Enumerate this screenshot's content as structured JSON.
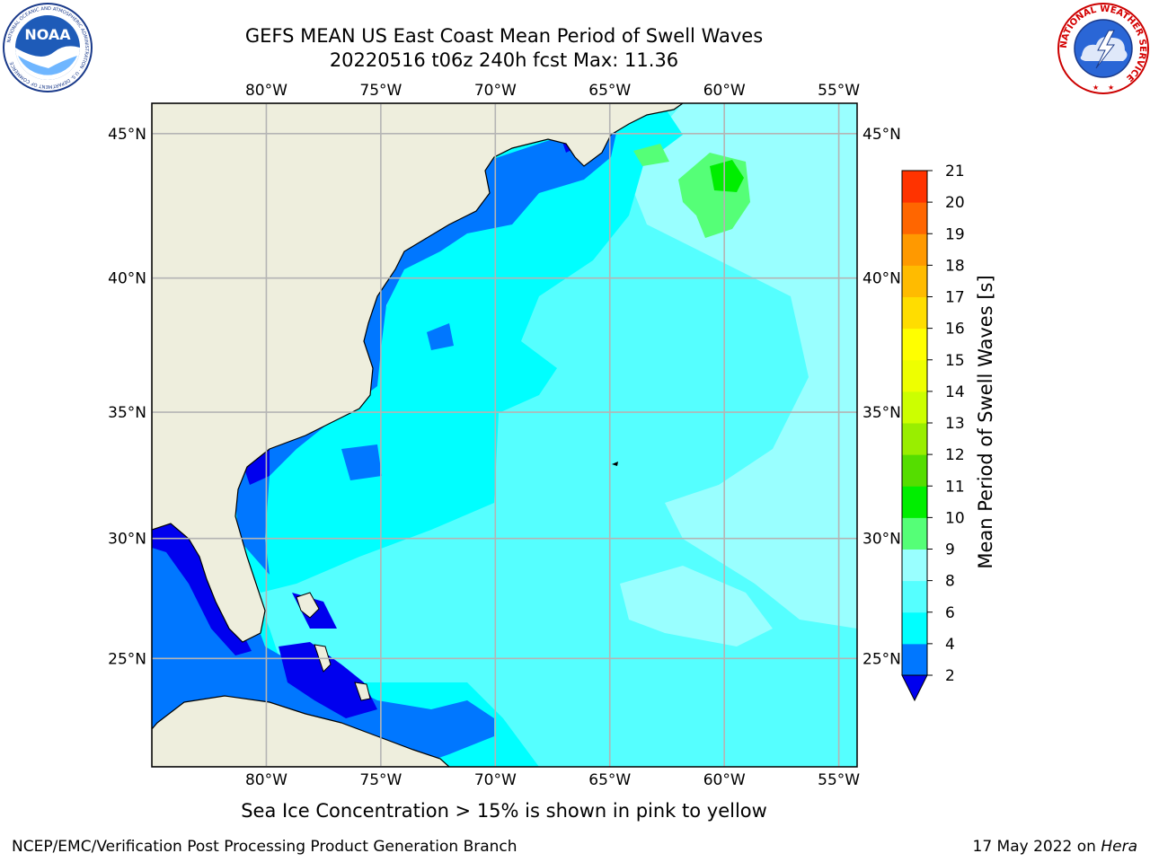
{
  "header": {
    "title_line1": "GEFS MEAN US East Coast Mean Period of Swell Waves",
    "title_line2": "20220516 t06z 240h fcst   Max: 11.36"
  },
  "logos": {
    "noaa": {
      "text": "NOAA",
      "ring": "NATIONAL OCEANIC AND ATMOSPHERIC ADMINISTRATION · U.S. DEPARTMENT OF COMMERCE"
    },
    "nws": {
      "ring": "NATIONAL WEATHER SERVICE"
    }
  },
  "map": {
    "lon_ticks": [
      "80°W",
      "75°W",
      "70°W",
      "65°W",
      "60°W",
      "55°W"
    ],
    "lat_ticks": [
      "45°N",
      "40°N",
      "35°N",
      "30°N",
      "25°N"
    ],
    "lon_values": [
      -80,
      -75,
      -70,
      -65,
      -60,
      -55
    ],
    "lat_values": [
      45,
      40,
      35,
      30,
      25
    ],
    "extent": {
      "lon_min": -85,
      "lon_max": -54.2,
      "lat_min": 20.3,
      "lat_max": 46
    },
    "colors": {
      "land": "#eeeedd",
      "grid": "#b4b4b4",
      "coast": "#000000"
    }
  },
  "colorbar": {
    "title": "Mean Period of Swell Waves [s]",
    "levels": [
      "2",
      "4",
      "6",
      "8",
      "9",
      "10",
      "11",
      "12",
      "13",
      "14",
      "15",
      "16",
      "17",
      "18",
      "19",
      "20",
      "21"
    ],
    "colors": [
      "#0077ff",
      "#00ffff",
      "#55ffff",
      "#99ffff",
      "#55ff77",
      "#00ee00",
      "#55dd00",
      "#99ee00",
      "#ccff00",
      "#eeff00",
      "#ffff00",
      "#ffdd00",
      "#ffbb00",
      "#ff9900",
      "#ff6600",
      "#ff3300"
    ],
    "under_color": "#0000ee",
    "over_color": "#ff0000"
  },
  "field_colors": {
    "p0_2": "#0000ee",
    "p2_4": "#0077ff",
    "p4_6": "#00ffff",
    "p6_8": "#55ffff",
    "p8_9": "#99ffff",
    "p9_10": "#55ff77",
    "p10_11": "#00ee00"
  },
  "footer": {
    "subtitle": "Sea Ice Concentration > 15% is shown in pink to yellow",
    "left": "NCEP/EMC/Verification Post Processing Product Generation Branch",
    "date": "17 May 2022 on ",
    "host": "Hera"
  }
}
